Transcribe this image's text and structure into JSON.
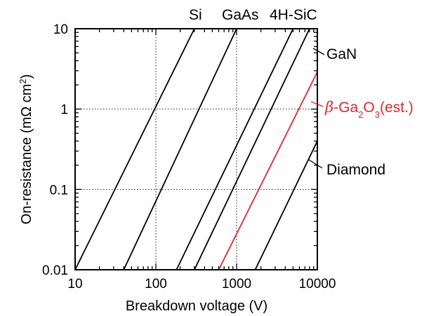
{
  "chart_data": {
    "type": "line",
    "title": "",
    "xlabel": "Breakdown voltage (V)",
    "ylabel": "On-resistance (mΩ cm²)",
    "ylabel_parts": {
      "before": "On-resistance (m",
      "omega": "Ω",
      "unit": " cm",
      "sup": "2",
      "after": ")"
    },
    "xscale": "log",
    "yscale": "log",
    "xlim": [
      10,
      10000
    ],
    "ylim": [
      0.01,
      10
    ],
    "x_ticks": [
      "10",
      "100",
      "1000",
      "10000"
    ],
    "y_ticks": [
      "0.01",
      "0.1",
      "1",
      "10"
    ],
    "grid": "dotted",
    "series": [
      {
        "name": "Si",
        "color": "#000000",
        "points": [
          [
            10,
            0.01
          ],
          [
            300,
            10
          ]
        ]
      },
      {
        "name": "GaAs",
        "color": "#000000",
        "points": [
          [
            40,
            0.01
          ],
          [
            1000,
            10
          ]
        ]
      },
      {
        "name": "4H-SiC",
        "color": "#000000",
        "points": [
          [
            180,
            0.01
          ],
          [
            5000,
            10
          ]
        ]
      },
      {
        "name": "GaN",
        "color": "#000000",
        "points": [
          [
            300,
            0.01
          ],
          [
            8000,
            10
          ]
        ]
      },
      {
        "name": "β-Ga2O3(est.)",
        "color": "#e8242b",
        "points": [
          [
            600,
            0.01
          ],
          [
            10000,
            2.9
          ]
        ]
      },
      {
        "name": "Diamond",
        "color": "#000000",
        "points": [
          [
            1700,
            0.01
          ],
          [
            10000,
            0.4
          ]
        ]
      }
    ],
    "top_labels": [
      "Si",
      "GaAs",
      "4H-SiC"
    ],
    "right_labels": {
      "gan": "GaN",
      "diamond": "Diamond",
      "ga2o3": {
        "beta": "β",
        "text1": "-Ga",
        "sub1": "2",
        "text2": "O",
        "sub2": "3",
        "text3": "(est.)",
        "color": "#e8242b"
      }
    }
  }
}
